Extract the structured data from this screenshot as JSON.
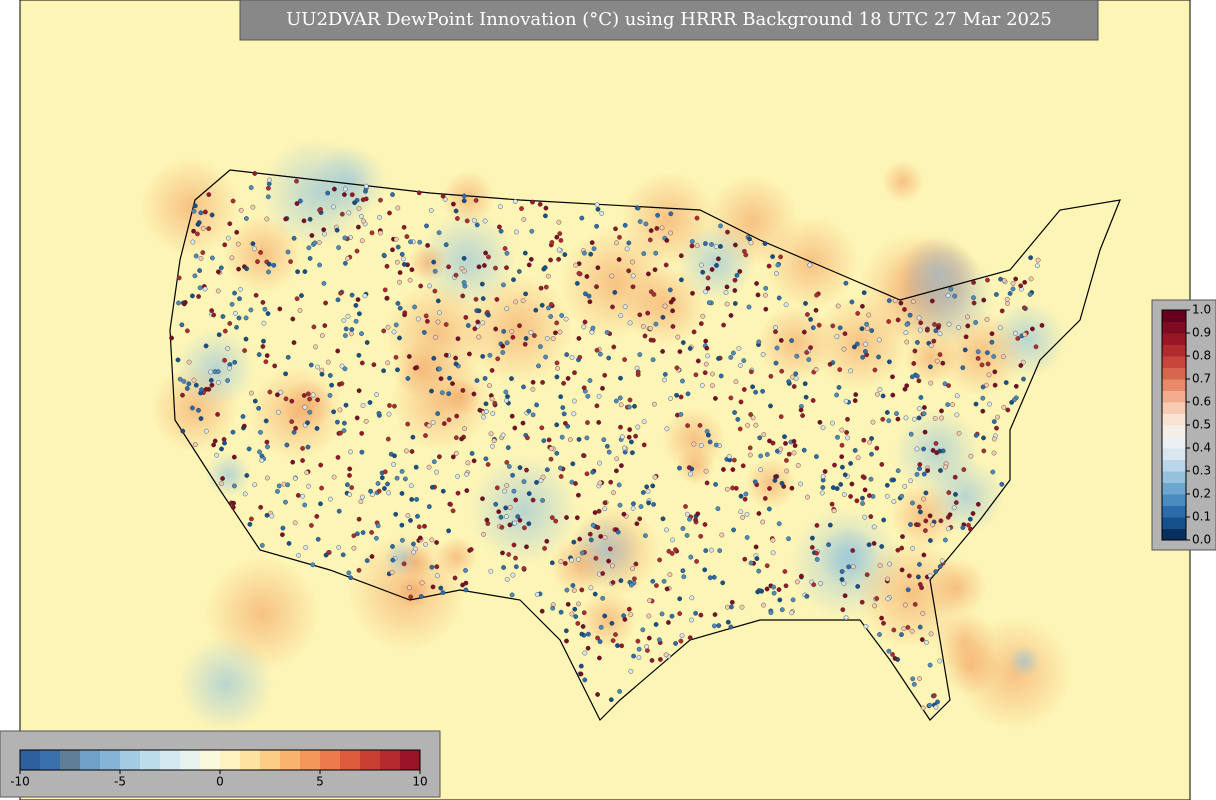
{
  "map": {
    "title": "UU2DVAR DewPoint Innovation (°C) using HRRR Background 18 UTC 27 Mar 2025",
    "innovation_colorbar": {
      "range": [
        -10,
        10
      ],
      "ticks": [
        -10,
        -5,
        0,
        5,
        10
      ],
      "colors": [
        "#2d5f9e",
        "#3a71ad",
        "#5f7f97",
        "#6fa0c8",
        "#86b4d6",
        "#a3cbe2",
        "#bcdcea",
        "#d4e9ef",
        "#e8f3ef",
        "#fbf9dd",
        "#fef3c0",
        "#fde2a0",
        "#fccd85",
        "#f9b36e",
        "#f4975a",
        "#ec7a4a",
        "#dd5c3e",
        "#c94033",
        "#b52a2e",
        "#9b1327"
      ]
    },
    "weight_colorbar": {
      "range": [
        0,
        1
      ],
      "ticks": [
        {
          "value": 0,
          "label": "0.0"
        },
        {
          "value": 0.1,
          "label": "0.1"
        },
        {
          "value": 0.2,
          "label": "0.2"
        },
        {
          "value": 0.3,
          "label": "0.3"
        },
        {
          "value": 0.4,
          "label": "0.4"
        },
        {
          "value": 0.5,
          "label": "0.5"
        },
        {
          "value": 0.6,
          "label": "0.6"
        },
        {
          "value": 0.7,
          "label": "0.7"
        },
        {
          "value": 0.8,
          "label": "0.8"
        },
        {
          "value": 0.9,
          "label": "0.9"
        },
        {
          "value": 1,
          "label": "1.0"
        }
      ],
      "colors": [
        "#08305f",
        "#15508b",
        "#2b6cad",
        "#4a8bc0",
        "#6ea6cf",
        "#95c1dd",
        "#bad6e8",
        "#d7e6ef",
        "#ebf0f2",
        "#f6efe8",
        "#f9e4d4",
        "#f7ccb3",
        "#f1ad8d",
        "#e68a6a",
        "#d6664f",
        "#c6463b",
        "#b02b2e",
        "#981727",
        "#7d0b22",
        "#67001f"
      ]
    }
  }
}
